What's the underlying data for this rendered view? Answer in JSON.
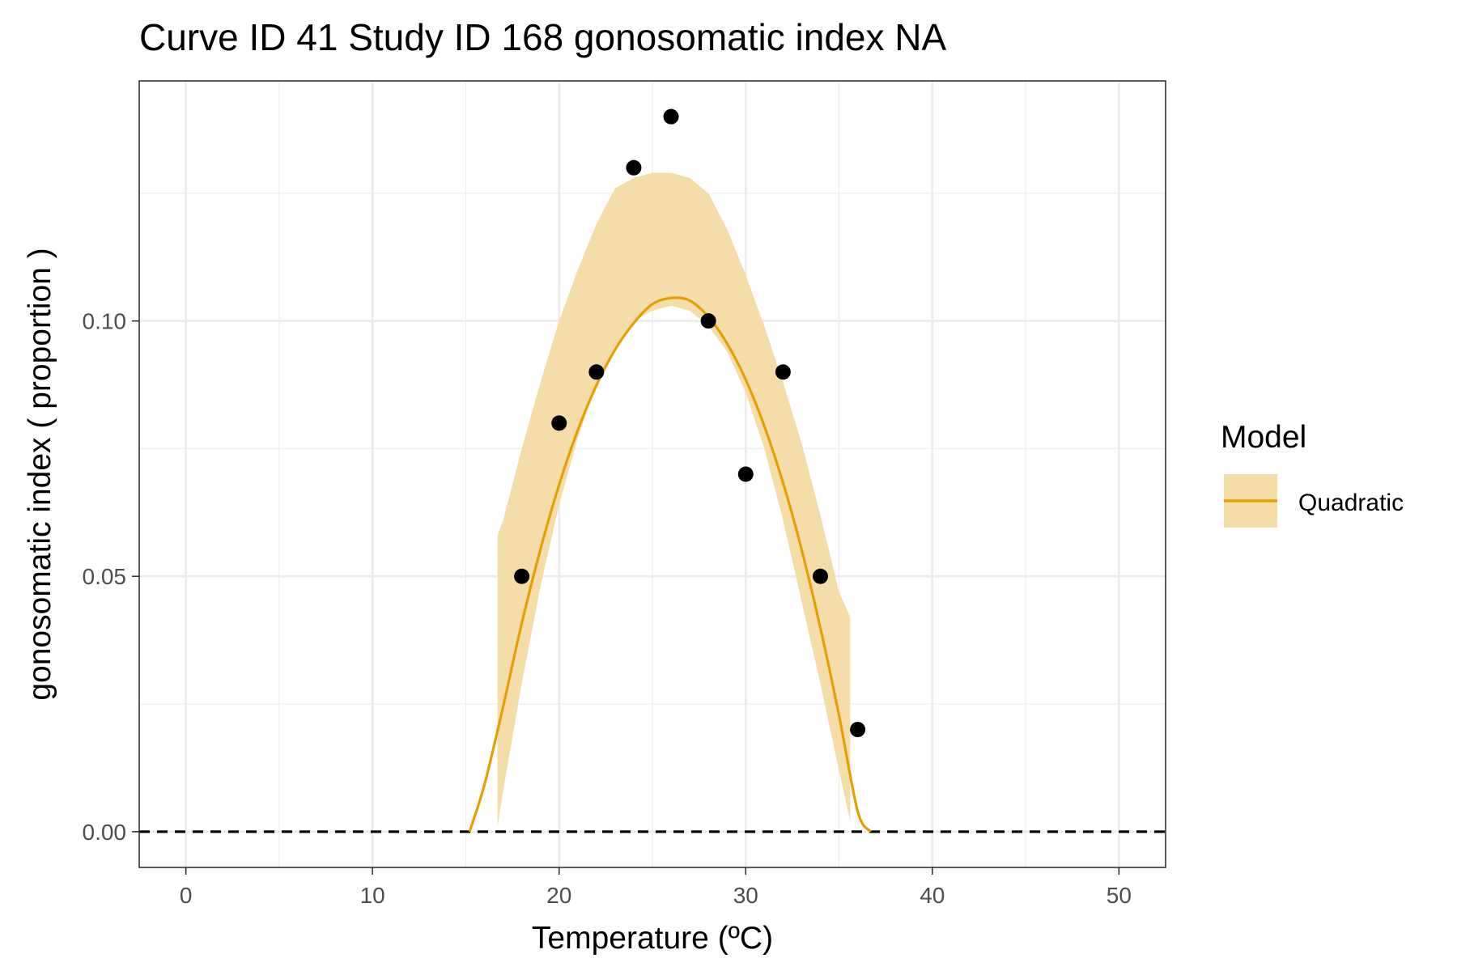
{
  "chart_data": {
    "type": "scatter",
    "title": "Curve ID 41 Study ID 168 gonosomatic index NA",
    "xlabel": "Temperature (ºC)",
    "ylabel": "gonosomatic index ( proportion )",
    "xlim": [
      -2.5,
      52.5
    ],
    "ylim": [
      -0.007,
      0.147
    ],
    "x_ticks": [
      0,
      10,
      20,
      30,
      40,
      50
    ],
    "x_tick_labels": [
      "0",
      "10",
      "20",
      "30",
      "40",
      "50"
    ],
    "y_ticks": [
      0.0,
      0.05,
      0.1
    ],
    "y_tick_labels": [
      "0.00",
      "0.05",
      "0.10"
    ],
    "grid": true,
    "reference_line": {
      "y": 0,
      "style": "dashed",
      "color": "#000000"
    },
    "points": {
      "x": [
        18,
        20,
        22,
        24,
        26,
        28,
        30,
        32,
        34,
        36
      ],
      "y": [
        0.05,
        0.08,
        0.09,
        0.13,
        0.14,
        0.1,
        0.07,
        0.09,
        0.05,
        0.02
      ],
      "color": "#000000"
    },
    "fit": {
      "model": "Quadratic",
      "x": [
        15.2,
        16,
        17,
        18,
        19,
        20,
        21,
        22,
        23,
        24,
        25,
        26,
        27,
        28,
        29,
        30,
        31,
        32,
        33,
        34,
        35,
        36,
        36.7
      ],
      "y": [
        0.0,
        0.0092,
        0.0245,
        0.0408,
        0.0553,
        0.0679,
        0.0786,
        0.0874,
        0.0944,
        0.0996,
        0.1033,
        0.1045,
        0.104,
        0.1008,
        0.0956,
        0.0885,
        0.0794,
        0.0683,
        0.0552,
        0.0399,
        0.0228,
        0.004,
        0.0
      ],
      "ci_x": [
        16.7,
        17,
        18,
        19,
        20,
        21,
        22,
        23,
        24,
        25,
        26,
        27,
        28,
        29,
        30,
        31,
        32,
        33,
        34,
        35,
        35.6
      ],
      "ci_lower": [
        0.001,
        0.008,
        0.029,
        0.048,
        0.064,
        0.077,
        0.088,
        0.095,
        0.1,
        0.102,
        0.103,
        0.102,
        0.099,
        0.094,
        0.086,
        0.075,
        0.061,
        0.045,
        0.029,
        0.012,
        0.002
      ],
      "ci_upper": [
        0.058,
        0.061,
        0.075,
        0.088,
        0.1,
        0.11,
        0.119,
        0.126,
        0.128,
        0.129,
        0.129,
        0.128,
        0.125,
        0.118,
        0.109,
        0.099,
        0.088,
        0.076,
        0.062,
        0.047,
        0.042
      ],
      "line_color": "#E69F00",
      "ribbon_color": "#F5DDAA"
    },
    "legend": {
      "title": "Model",
      "position": "right",
      "entries": [
        "Quadratic"
      ]
    }
  }
}
